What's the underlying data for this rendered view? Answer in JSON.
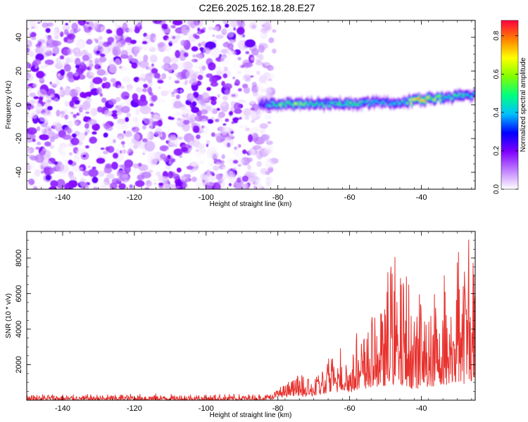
{
  "title": "C2E6.2025.162.18.28.E27",
  "chart_data": [
    {
      "type": "heatmap",
      "xlabel": "Height of straight line (km)",
      "ylabel": "Frequency (Hz)",
      "xlim": [
        -150,
        -25
      ],
      "ylim": [
        -50,
        50
      ],
      "x_ticks": [
        -140,
        -120,
        -100,
        -80,
        -60,
        -40
      ],
      "y_ticks": [
        -40,
        -20,
        0,
        20,
        40
      ],
      "grid": false,
      "colorbar": {
        "label": "Normalized spectral amplitude",
        "range": [
          0,
          0.88
        ],
        "ticks": [
          0.0,
          0.2,
          0.4,
          0.6,
          0.8
        ],
        "colors": [
          "#ffffff",
          "#c080ff",
          "#8000ff",
          "#0000ff",
          "#00c0ff",
          "#00ff80",
          "#80ff00",
          "#ffff00",
          "#ff8000",
          "#ff0040"
        ]
      },
      "noise_region": {
        "x": [
          -150,
          -83
        ],
        "frequency": [
          -50,
          50
        ],
        "amplitude_max": 0.22
      },
      "signal_band": [
        {
          "x": -85,
          "frequency": 0.5,
          "amplitude": 0.3
        },
        {
          "x": -80,
          "frequency": 0.5,
          "amplitude": 0.55
        },
        {
          "x": -75,
          "frequency": 0.5,
          "amplitude": 0.6
        },
        {
          "x": -70,
          "frequency": 0.8,
          "amplitude": 0.5
        },
        {
          "x": -65,
          "frequency": 0.5,
          "amplitude": 0.45
        },
        {
          "x": -60,
          "frequency": 1,
          "amplitude": 0.5
        },
        {
          "x": -55,
          "frequency": 1,
          "amplitude": 0.45
        },
        {
          "x": -50,
          "frequency": 1.5,
          "amplitude": 0.4
        },
        {
          "x": -45,
          "frequency": 1.5,
          "amplitude": 0.45
        },
        {
          "x": -40,
          "frequency": 3,
          "amplitude": 0.8
        },
        {
          "x": -35,
          "frequency": 4,
          "amplitude": 0.55
        },
        {
          "x": -30,
          "frequency": 5,
          "amplitude": 0.5
        },
        {
          "x": -25,
          "frequency": 6,
          "amplitude": 0.45
        }
      ]
    },
    {
      "type": "line",
      "xlabel": "Height of straight line (km)",
      "ylabel": "SNR (10 * v/v)",
      "xlim": [
        -150,
        -25
      ],
      "ylim": [
        0,
        9500
      ],
      "x_ticks": [
        -140,
        -120,
        -100,
        -80,
        -60,
        -40
      ],
      "y_ticks": [
        2000,
        4000,
        6000,
        8000
      ],
      "grid": false,
      "series": [
        {
          "color": "#e8322e",
          "x": [
            -150,
            -140,
            -130,
            -120,
            -110,
            -100,
            -90,
            -85,
            -82,
            -80,
            -78,
            -76,
            -74,
            -72,
            -70,
            -68,
            -66,
            -64,
            -62,
            -60,
            -58,
            -56,
            -54,
            -52,
            -50,
            -48,
            -46,
            -44,
            -42,
            -40,
            -38,
            -36,
            -34,
            -32,
            -30,
            -28,
            -26,
            -25
          ],
          "envelope_max": [
            400,
            350,
            350,
            400,
            380,
            380,
            350,
            380,
            500,
            800,
            900,
            1200,
            1500,
            1300,
            1200,
            1800,
            2400,
            2800,
            3200,
            2800,
            3800,
            3500,
            4800,
            4500,
            6500,
            8800,
            7000,
            7800,
            6500,
            6000,
            4800,
            6800,
            7500,
            6900,
            8500,
            9500,
            9200,
            7200
          ],
          "envelope_min": [
            0,
            0,
            0,
            0,
            0,
            0,
            0,
            0,
            50,
            150,
            150,
            200,
            250,
            200,
            250,
            300,
            400,
            400,
            500,
            400,
            600,
            500,
            700,
            700,
            800,
            900,
            700,
            800,
            600,
            700,
            700,
            800,
            900,
            800,
            1000,
            900,
            1100,
            900
          ]
        }
      ]
    }
  ]
}
